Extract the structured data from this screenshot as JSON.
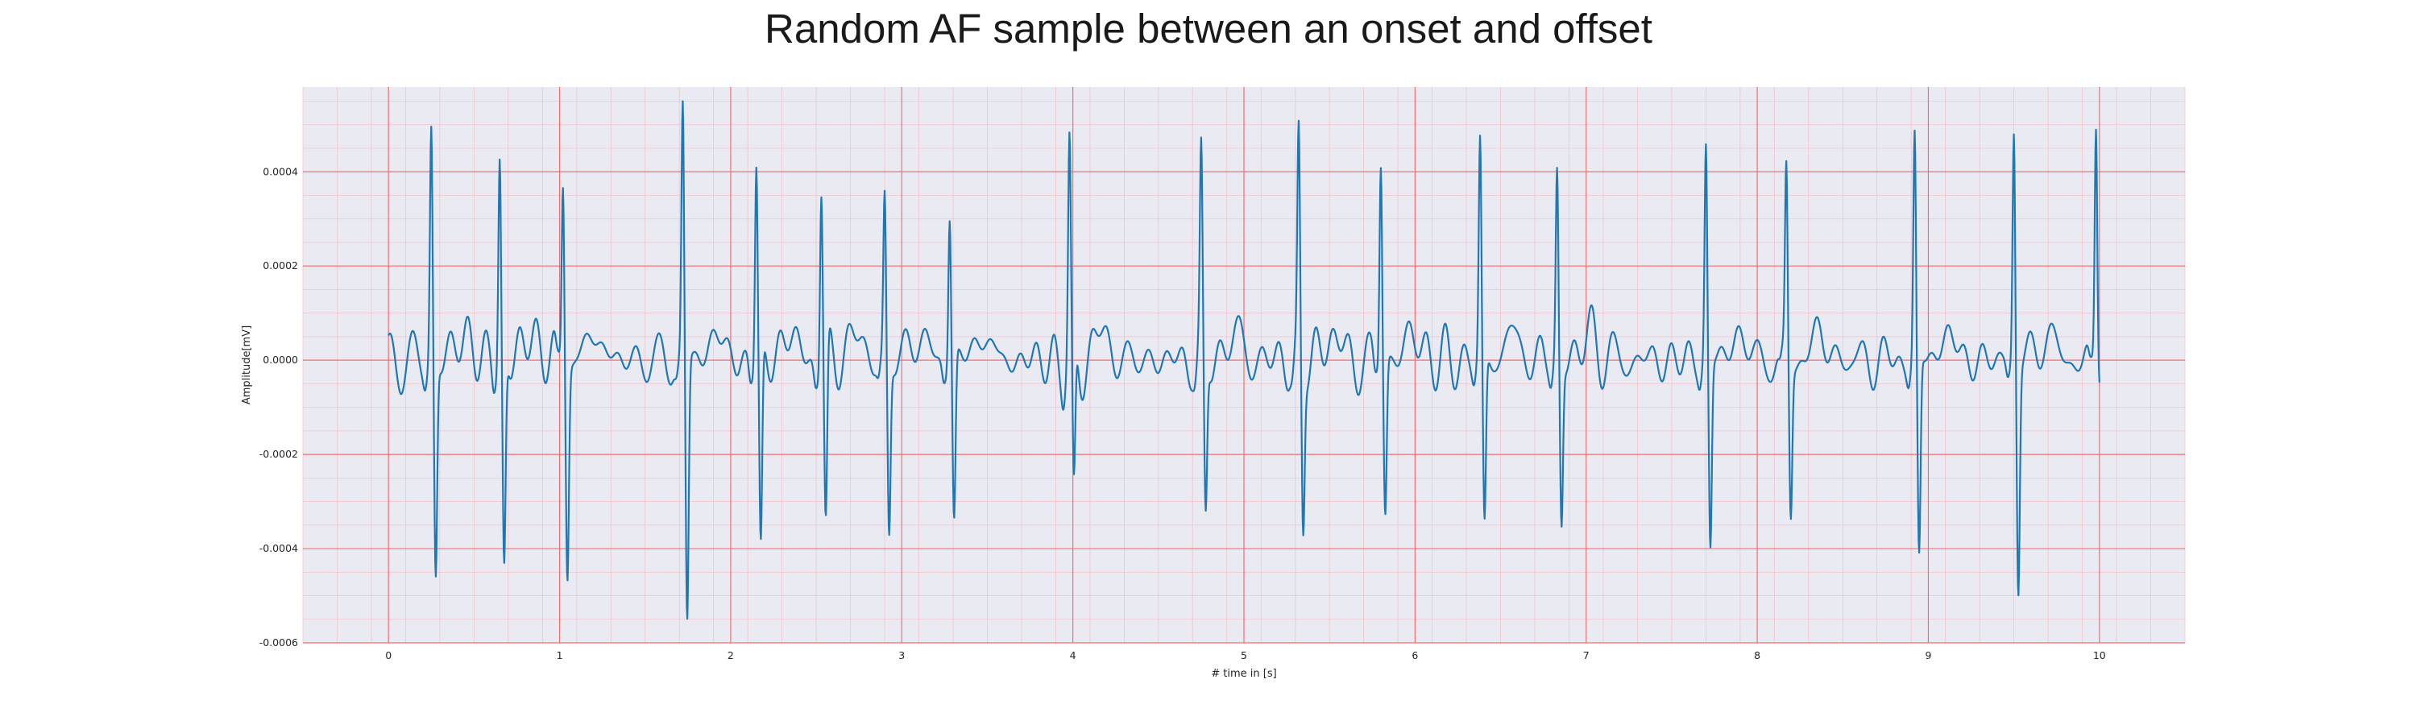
{
  "chart_data": {
    "type": "line",
    "title": "Random AF sample between an onset and offset",
    "xlabel": "# time in [s]",
    "ylabel": "Amplitude[mV]",
    "xlim": [
      -0.5,
      10.5
    ],
    "ylim": [
      -0.0006,
      0.00058
    ],
    "x_ticks": [
      0,
      1,
      2,
      3,
      4,
      5,
      6,
      7,
      8,
      9,
      10
    ],
    "x_tick_labels": [
      "0",
      "1",
      "2",
      "3",
      "4",
      "5",
      "6",
      "7",
      "8",
      "9",
      "10"
    ],
    "y_ticks": [
      -0.0006,
      -0.0004,
      -0.0002,
      0.0,
      0.0002,
      0.0004
    ],
    "y_tick_labels": [
      "-0.0006",
      "-0.0004",
      "-0.0002",
      "0.0000",
      "0.0002",
      "0.0004"
    ],
    "grid": true,
    "minor_grid": true,
    "legend": "none",
    "colors": {
      "line": "#1f77b4",
      "plot_background": "#eaeaf2",
      "major_grid": "#f07070",
      "minor_grid": "#f3c4cc"
    },
    "series": [
      {
        "beats": [
          {
            "t": 0.25,
            "peak": 0.000488,
            "trough": -0.000465
          },
          {
            "t": 0.65,
            "peak": 0.000428,
            "trough": -0.000452
          },
          {
            "t": 1.02,
            "peak": 0.0004,
            "trough": -0.000432
          },
          {
            "t": 1.72,
            "peak": 0.000535,
            "trough": -0.000558
          },
          {
            "t": 2.15,
            "peak": 0.000418,
            "trough": -0.00043
          },
          {
            "t": 2.53,
            "peak": 0.000377,
            "trough": -0.000385
          },
          {
            "t": 2.9,
            "peak": 0.000335,
            "trough": -0.000372
          },
          {
            "t": 3.28,
            "peak": 0.000325,
            "trough": -0.000348
          },
          {
            "t": 3.98,
            "peak": 0.00043,
            "trough": -0.000332
          },
          {
            "t": 4.75,
            "peak": 0.000408,
            "trough": -0.000338
          },
          {
            "t": 5.32,
            "peak": 0.00045,
            "trough": -0.00035
          },
          {
            "t": 5.8,
            "peak": 0.000438,
            "trough": -0.000322
          },
          {
            "t": 6.38,
            "peak": 0.000455,
            "trough": -0.000365
          },
          {
            "t": 6.83,
            "peak": 0.000392,
            "trough": -0.00035
          },
          {
            "t": 7.7,
            "peak": 0.00045,
            "trough": -0.000402
          },
          {
            "t": 8.17,
            "peak": 0.000395,
            "trough": -0.000325
          },
          {
            "t": 8.92,
            "peak": 0.00047,
            "trough": -0.000432
          },
          {
            "t": 9.5,
            "peak": 0.000495,
            "trough": -0.000478
          },
          {
            "t": 9.98,
            "peak": 0.000525,
            "trough": -2e-05
          }
        ],
        "t_start": 0.0,
        "t_end": 10.0,
        "baseline": 0.0
      }
    ]
  }
}
